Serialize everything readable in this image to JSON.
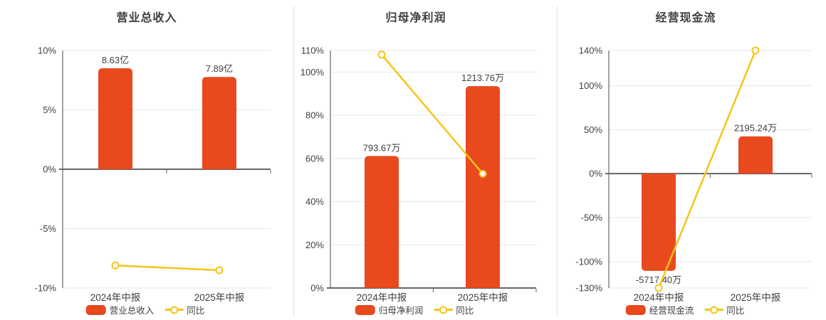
{
  "colors": {
    "bar": "#e8491d",
    "line": "#f5c518",
    "text": "#404040",
    "axis": "#666666",
    "grid": "#e3e8ee",
    "divider": "#e4e4e4",
    "marker_fill": "#ffffff"
  },
  "chart_data": [
    {
      "type": "bar+line",
      "title": "营业总收入",
      "categories": [
        "2024年中报",
        "2025年中报"
      ],
      "bar_series": {
        "name": "营业总收入",
        "unit": "亿",
        "values": [
          8.63,
          7.89
        ],
        "labels": [
          "8.63亿",
          "7.89亿"
        ]
      },
      "line_series": {
        "name": "同比",
        "unit": "%",
        "values_pct": [
          -8.1,
          -8.5
        ]
      },
      "ylim": [
        -10,
        10
      ],
      "yticks": [
        -10,
        -5,
        0,
        5,
        10
      ],
      "ytick_labels": [
        "-10%",
        "-5%",
        "0%",
        "5%",
        "10%"
      ],
      "legend": [
        "营业总收入",
        "同比"
      ],
      "legend_position": "bottom",
      "grid": true
    },
    {
      "type": "bar+line",
      "title": "归母净利润",
      "categories": [
        "2024年中报",
        "2025年中报"
      ],
      "bar_series": {
        "name": "归母净利润",
        "unit": "万",
        "values": [
          793.67,
          1213.76
        ],
        "labels": [
          "793.67万",
          "1213.76万"
        ]
      },
      "line_series": {
        "name": "同比",
        "unit": "%",
        "values_pct": [
          108.1,
          52.9
        ]
      },
      "ylim": [
        0,
        110
      ],
      "yticks": [
        0,
        20,
        40,
        60,
        80,
        100,
        110
      ],
      "ytick_labels": [
        "0%",
        "20%",
        "40%",
        "60%",
        "80%",
        "100%",
        "110%"
      ],
      "legend": [
        "归母净利润",
        "同比"
      ],
      "legend_position": "bottom",
      "grid": true
    },
    {
      "type": "bar+line",
      "title": "经营现金流",
      "categories": [
        "2024年中报",
        "2025年中报"
      ],
      "bar_series": {
        "name": "经营现金流",
        "unit": "万",
        "values": [
          -5717.4,
          2195.24
        ],
        "labels": [
          "-5717.40万",
          "2195.24万"
        ]
      },
      "line_series": {
        "name": "同比",
        "unit": "%",
        "values_pct": [
          -130,
          140
        ]
      },
      "ylim": [
        -130,
        140
      ],
      "yticks": [
        -130,
        -100,
        -50,
        0,
        50,
        100,
        140
      ],
      "ytick_labels": [
        "-130%",
        "-100%",
        "-50%",
        "0%",
        "50%",
        "100%",
        "140%"
      ],
      "legend": [
        "经营现金流",
        "同比"
      ],
      "legend_position": "bottom",
      "grid": true
    }
  ]
}
